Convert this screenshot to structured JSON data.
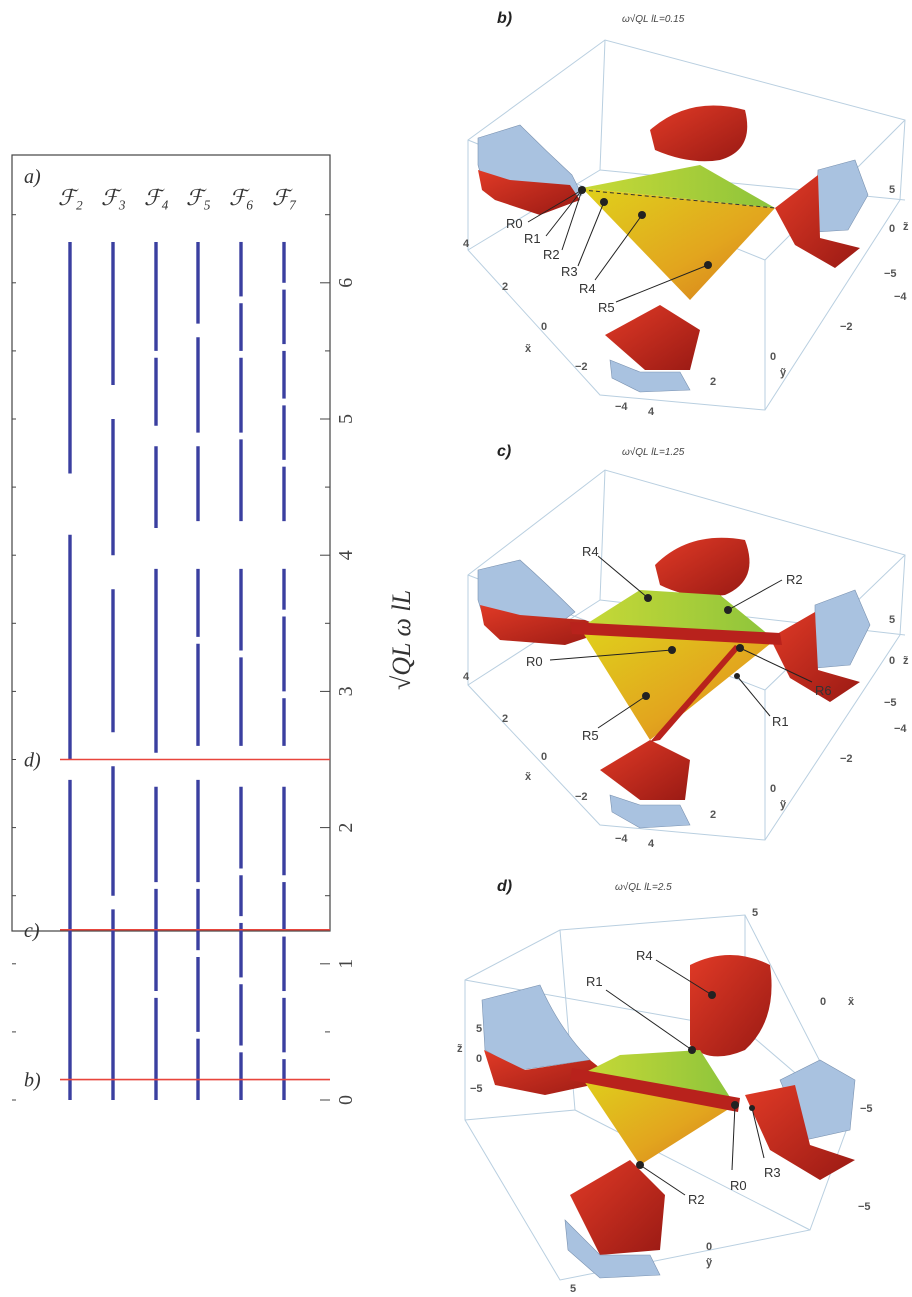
{
  "panel_a": {
    "label": "a)",
    "columns": [
      "ℱ₂",
      "ℱ₃",
      "ℱ₄",
      "ℱ₅",
      "ℱ₆",
      "ℱ₇"
    ],
    "axis_label": "√QL ω lL",
    "ticks": [
      "0",
      "1",
      "2",
      "3",
      "4",
      "5",
      "6"
    ],
    "reference_lines": [
      {
        "label": "b)",
        "value": 0.15
      },
      {
        "label": "c)",
        "value": 1.25
      },
      {
        "label": "d)",
        "value": 2.5
      }
    ],
    "line_color": "#e8453c",
    "bar_color": "#3a3fa0"
  },
  "chart_data": {
    "type": "bar",
    "title": "",
    "categories": [
      "F2",
      "F3",
      "F4",
      "F5",
      "F6",
      "F7"
    ],
    "xlabel": "",
    "ylabel": "√QL ω lL",
    "ylim": [
      0,
      6.6
    ],
    "segments": [
      [
        [
          0,
          2.35
        ],
        [
          2.5,
          4.15
        ],
        [
          4.6,
          6.3
        ]
      ],
      [
        [
          0,
          1.4
        ],
        [
          1.5,
          2.45
        ],
        [
          2.7,
          3.75
        ],
        [
          4.0,
          5.0
        ],
        [
          5.25,
          6.3
        ]
      ],
      [
        [
          0,
          0.75
        ],
        [
          0.8,
          1.55
        ],
        [
          1.6,
          2.3
        ],
        [
          2.55,
          3.9
        ],
        [
          4.2,
          4.8
        ],
        [
          4.95,
          5.45
        ],
        [
          5.5,
          6.3
        ]
      ],
      [
        [
          0,
          0.45
        ],
        [
          0.5,
          1.05
        ],
        [
          1.1,
          1.55
        ],
        [
          1.6,
          2.35
        ],
        [
          2.6,
          3.35
        ],
        [
          3.4,
          3.9
        ],
        [
          4.25,
          4.8
        ],
        [
          4.9,
          5.6
        ],
        [
          5.7,
          6.3
        ]
      ],
      [
        [
          0,
          0.35
        ],
        [
          0.4,
          0.85
        ],
        [
          0.9,
          1.3
        ],
        [
          1.35,
          1.65
        ],
        [
          1.7,
          2.3
        ],
        [
          2.6,
          3.25
        ],
        [
          3.3,
          3.9
        ],
        [
          4.25,
          4.85
        ],
        [
          4.9,
          5.45
        ],
        [
          5.5,
          5.85
        ],
        [
          5.9,
          6.3
        ]
      ],
      [
        [
          0,
          0.3
        ],
        [
          0.35,
          0.75
        ],
        [
          0.8,
          1.2
        ],
        [
          1.25,
          1.6
        ],
        [
          1.65,
          2.3
        ],
        [
          2.6,
          2.95
        ],
        [
          3.0,
          3.55
        ],
        [
          3.6,
          3.9
        ],
        [
          4.25,
          4.65
        ],
        [
          4.7,
          5.1
        ],
        [
          5.15,
          5.5
        ],
        [
          5.55,
          5.95
        ],
        [
          6.0,
          6.3
        ]
      ]
    ],
    "reference_values": [
      0.15,
      1.25,
      2.5
    ]
  },
  "panel_b": {
    "label": "b)",
    "caption": "ω√QL lL=0.15",
    "regions": [
      "R0",
      "R1",
      "R2",
      "R3",
      "R4",
      "R5"
    ],
    "axis_x": "x̃",
    "axis_y": "ỹ",
    "axis_z": "z̃",
    "ticks_x": [
      "4",
      "2",
      "0",
      "−2",
      "−4"
    ],
    "ticks_y": [
      "4",
      "2",
      "0",
      "−2",
      "−4"
    ],
    "ticks_z": [
      "5",
      "0",
      "−5"
    ]
  },
  "panel_c": {
    "label": "c)",
    "caption": "ω√QL lL=1.25",
    "regions": [
      "R4",
      "R2",
      "R0",
      "R6",
      "R1",
      "R5"
    ],
    "axis_x": "x̃",
    "axis_y": "ỹ",
    "axis_z": "z̃",
    "ticks_x": [
      "4",
      "2",
      "0",
      "−2",
      "−4"
    ],
    "ticks_y": [
      "4",
      "2",
      "0",
      "−2",
      "−4"
    ],
    "ticks_z": [
      "5",
      "0",
      "−5"
    ]
  },
  "panel_d": {
    "label": "d)",
    "caption": "ω√QL lL=2.5",
    "regions": [
      "R1",
      "R4",
      "R0",
      "R3",
      "R2"
    ],
    "axis_x": "x̃",
    "axis_y": "ỹ",
    "axis_z": "z̃",
    "ticks_x": [
      "5",
      "0",
      "−5"
    ],
    "ticks_y": [
      "5",
      "0",
      "−5"
    ],
    "ticks_z": [
      "5",
      "0",
      "−5"
    ]
  },
  "colors": {
    "surface_red": "#c8221c",
    "surface_blue": "#a9c2e0",
    "surface_green": "#a8cc3c",
    "surface_yellow": "#e0c21c",
    "cube": "#b9cfe0"
  }
}
